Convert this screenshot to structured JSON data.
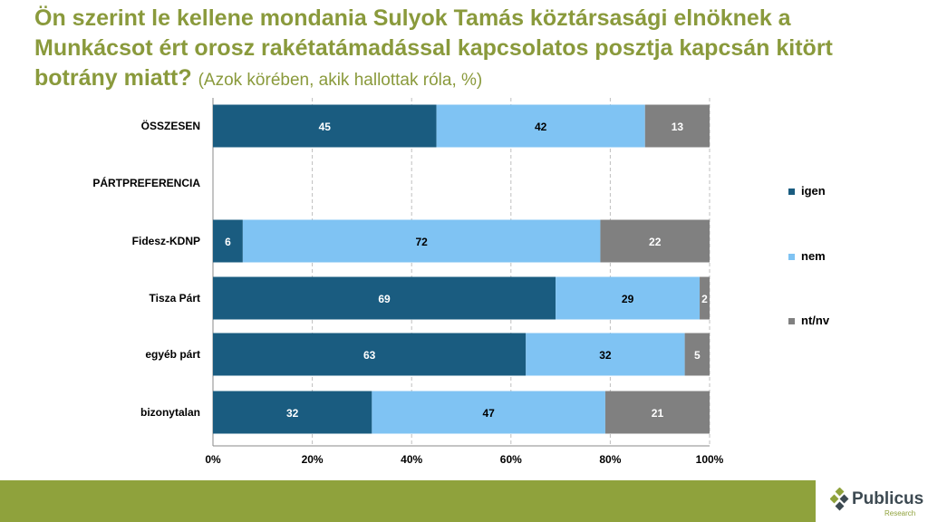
{
  "title": {
    "main": "Ön szerint le kellene mondania Sulyok Tamás köztársasági elnöknek a Munkácsot ért orosz rakétatámadással kapcsolatos posztja kapcsán kitört botrány miatt?",
    "sub": "(Azok körében, akik hallottak róla, %)"
  },
  "logo": {
    "name": "Publicus",
    "sub": "Research",
    "icon": "publicus-diamond-logo"
  },
  "colors": {
    "igen": "#1a5c80",
    "nem": "#7fc3f3",
    "ntnv": "#808080",
    "title": "#8a9a3c",
    "footer": "#8fa23c"
  },
  "chart_data": {
    "type": "bar",
    "orientation": "horizontal",
    "stacked": true,
    "categories": [
      "ÖSSZESEN",
      "PÁRTPREFERENCIA",
      "Fidesz-KDNP",
      "Tisza Párt",
      "egyéb párt",
      "bizonytalan"
    ],
    "series": [
      {
        "name": "igen",
        "values": [
          45,
          null,
          6,
          69,
          63,
          32
        ]
      },
      {
        "name": "nem",
        "values": [
          42,
          null,
          72,
          29,
          32,
          47
        ]
      },
      {
        "name": "nt/nv",
        "values": [
          13,
          null,
          22,
          2,
          5,
          21
        ]
      }
    ],
    "xlim": [
      0,
      100
    ],
    "xticks": [
      "0%",
      "20%",
      "40%",
      "60%",
      "80%",
      "100%"
    ],
    "grid": "vertical dashed",
    "legend": "right"
  }
}
